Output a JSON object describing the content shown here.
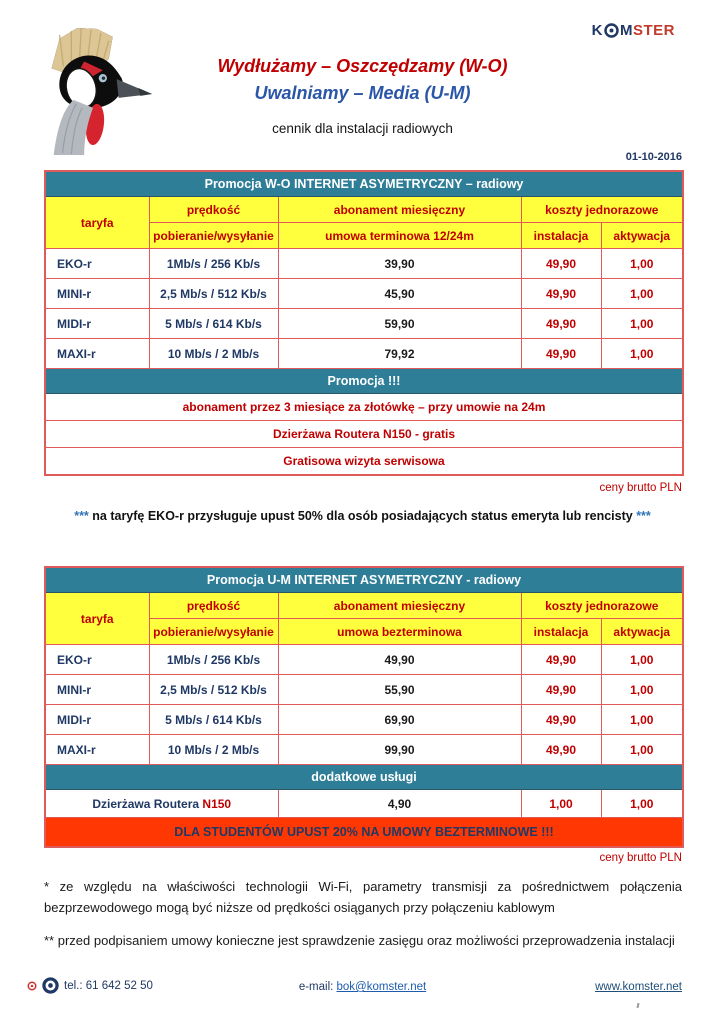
{
  "page": {
    "date": "01-10-2016",
    "title_red": "Wydłużamy – Oszczędzamy (W-O)",
    "title_blue": "Uwalniamy – Media (U-M)",
    "subtitle": "cennik dla instalacji radiowych"
  },
  "brand": {
    "k": "K",
    "m": "M",
    "ster": "STER"
  },
  "icons": {
    "logo": "crowned-crane-logo",
    "brand_o": "target-icon",
    "footer_small": "target-icon-red",
    "footer_large": "target-icon-navy"
  },
  "colors": {
    "teal": "#2E7E98",
    "yellow": "#FFFF3D",
    "red_text": "#C00000",
    "border_red": "#E05A5A",
    "navy": "#1F3864",
    "blue_title": "#2A56A8",
    "orange_banner": "#FF3803",
    "link_blue": "#1F5CB0"
  },
  "table1": {
    "title": "Promocja W-O INTERNET ASYMETRYCZNY – radiowy",
    "headers": {
      "taryfa": "taryfa",
      "predkosc": "prędkość",
      "predkosc_sub": "pobieranie/wysyłanie",
      "abonament": "abonament miesięczny",
      "abonament_sub": "umowa terminowa 12/24m",
      "koszty": "koszty jednorazowe",
      "instalacja": "instalacja",
      "aktywacja": "aktywacja"
    },
    "rows": [
      {
        "taryfa": "EKO-r",
        "speed": "1Mb/s / 256 Kb/s",
        "abonament": "39,90",
        "instalacja": "49,90",
        "aktywacja": "1,00"
      },
      {
        "taryfa": "MINI-r",
        "speed": "2,5 Mb/s / 512 Kb/s",
        "abonament": "45,90",
        "instalacja": "49,90",
        "aktywacja": "1,00"
      },
      {
        "taryfa": "MIDI-r",
        "speed": "5 Mb/s / 614 Kb/s",
        "abonament": "59,90",
        "instalacja": "49,90",
        "aktywacja": "1,00"
      },
      {
        "taryfa": "MAXI-r",
        "speed": "10 Mb/s / 2 Mb/s",
        "abonament": "79,92",
        "instalacja": "49,90",
        "aktywacja": "1,00"
      }
    ],
    "promo_title": "Promocja !!!",
    "promo_rows": [
      "abonament przez 3 miesiące za złotówkę – przy umowie na 24m",
      "Dzierżawa Routera N150 - gratis",
      "Gratisowa wizyta serwisowa"
    ],
    "footnote": "ceny brutto PLN"
  },
  "mid_note": {
    "stars_left": "***",
    "text": " na taryfę EKO-r przysługuje upust 50% dla osób posiadających status emeryta lub rencisty ",
    "stars_right": "***"
  },
  "table2": {
    "title": "Promocja U-M INTERNET ASYMETRYCZNY - radiowy",
    "headers": {
      "taryfa": "taryfa",
      "predkosc": "prędkość",
      "predkosc_sub": "pobieranie/wysyłanie",
      "abonament": "abonament miesięczny",
      "abonament_sub": "umowa bezterminowa",
      "koszty": "koszty jednorazowe",
      "instalacja": "instalacja",
      "aktywacja": "aktywacja"
    },
    "rows": [
      {
        "taryfa": "EKO-r",
        "speed": "1Mb/s / 256 Kb/s",
        "abonament": "49,90",
        "instalacja": "49,90",
        "aktywacja": "1,00"
      },
      {
        "taryfa": "MINI-r",
        "speed": "2,5 Mb/s / 512 Kb/s",
        "abonament": "55,90",
        "instalacja": "49,90",
        "aktywacja": "1,00"
      },
      {
        "taryfa": "MIDI-r",
        "speed": "5 Mb/s / 614 Kb/s",
        "abonament": "69,90",
        "instalacja": "49,90",
        "aktywacja": "1,00"
      },
      {
        "taryfa": "MAXI-r",
        "speed": "10 Mb/s / 2 Mb/s",
        "abonament": "99,90",
        "instalacja": "49,90",
        "aktywacja": "1,00"
      }
    ],
    "services_title": "dodatkowe usługi",
    "service_row": {
      "name_prefix": "Dzierżawa Routera ",
      "name_highlight": "N150",
      "abonament": "4,90",
      "instalacja": "1,00",
      "aktywacja": "1,00"
    },
    "students_banner": "DLA STUDENTÓW UPUST 20% NA UMOWY BEZTERMINOWE !!!",
    "footnote": "ceny brutto PLN"
  },
  "notes": {
    "note1": "* ze względu na właściwości technologii Wi-Fi, parametry transmisji za pośrednictwem połączenia bezprzewodowego mogą być niższe od prędkości osiąganych przy połączeniu kablowym",
    "note2": "** przed podpisaniem umowy konieczne jest sprawdzenie zasięgu oraz możliwości przeprowadzenia instalacji"
  },
  "footer": {
    "tel": "tel.: 61 642 52 50",
    "email_label": "e-mail: ",
    "email_link": "bok@komster.net",
    "website": "www.komster.net"
  }
}
